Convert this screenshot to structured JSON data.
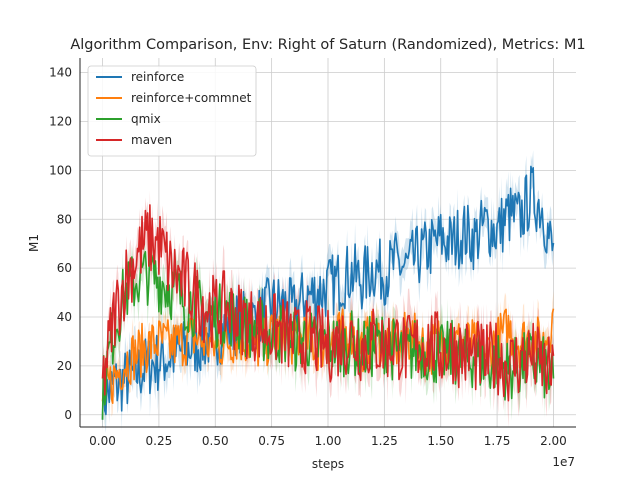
{
  "chart_data": {
    "type": "line",
    "title": "Algorithm Comparison, Env: Right of Saturn (Randomized), Metrics: M1",
    "xlabel": "steps",
    "ylabel": "M1",
    "x_offset_label": "1e7",
    "xlim": [
      -0.1,
      2.1
    ],
    "ylim": [
      -5,
      146
    ],
    "x_ticks": [
      0.0,
      0.25,
      0.5,
      0.75,
      1.0,
      1.25,
      1.5,
      1.75,
      2.0
    ],
    "x_tick_labels": [
      "0.00",
      "0.25",
      "0.50",
      "0.75",
      "1.00",
      "1.25",
      "1.50",
      "1.75",
      "2.00"
    ],
    "y_ticks": [
      0,
      20,
      40,
      60,
      80,
      100,
      120,
      140
    ],
    "y_tick_labels": [
      "0",
      "20",
      "40",
      "60",
      "80",
      "100",
      "120",
      "140"
    ],
    "grid": true,
    "legend_position": "top-left",
    "x": [
      0.0,
      0.05,
      0.1,
      0.15,
      0.2,
      0.25,
      0.3,
      0.35,
      0.4,
      0.45,
      0.5,
      0.55,
      0.6,
      0.65,
      0.7,
      0.75,
      0.8,
      0.85,
      0.9,
      0.95,
      1.0,
      1.05,
      1.1,
      1.15,
      1.2,
      1.25,
      1.3,
      1.35,
      1.4,
      1.45,
      1.5,
      1.55,
      1.6,
      1.65,
      1.7,
      1.75,
      1.8,
      1.85,
      1.9,
      1.95,
      2.0
    ],
    "series": [
      {
        "name": "reinforce",
        "color": "#1f77b4",
        "values": [
          6,
          12,
          14,
          17,
          20,
          22,
          24,
          26,
          28,
          30,
          33,
          35,
          38,
          38,
          40,
          45,
          45,
          42,
          48,
          50,
          52,
          55,
          58,
          55,
          60,
          58,
          62,
          60,
          65,
          68,
          72,
          70,
          75,
          72,
          78,
          75,
          82,
          80,
          90,
          85,
          65
        ],
        "band": 6
      },
      {
        "name": "reinforce+commnet",
        "color": "#ff7f0e",
        "values": [
          8,
          15,
          22,
          25,
          28,
          30,
          28,
          30,
          32,
          30,
          28,
          30,
          32,
          30,
          28,
          32,
          34,
          30,
          32,
          28,
          30,
          32,
          34,
          28,
          32,
          30,
          28,
          32,
          30,
          26,
          32,
          28,
          30,
          28,
          25,
          30,
          35,
          30,
          32,
          28,
          40
        ],
        "band": 5
      },
      {
        "name": "qmix",
        "color": "#2ca02c",
        "values": [
          10,
          35,
          50,
          55,
          58,
          55,
          52,
          48,
          45,
          42,
          40,
          42,
          38,
          36,
          35,
          32,
          34,
          30,
          32,
          28,
          30,
          28,
          30,
          26,
          28,
          30,
          26,
          24,
          28,
          26,
          24,
          26,
          22,
          24,
          20,
          22,
          18,
          20,
          22,
          20,
          12
        ],
        "band": 6
      },
      {
        "name": "maven",
        "color": "#d62728",
        "values": [
          12,
          40,
          55,
          65,
          72,
          70,
          60,
          55,
          50,
          45,
          42,
          44,
          40,
          38,
          36,
          35,
          34,
          30,
          32,
          30,
          28,
          30,
          32,
          28,
          30,
          28,
          30,
          26,
          28,
          30,
          26,
          28,
          25,
          24,
          22,
          24,
          20,
          22,
          24,
          20,
          15
        ],
        "band": 7
      }
    ]
  }
}
